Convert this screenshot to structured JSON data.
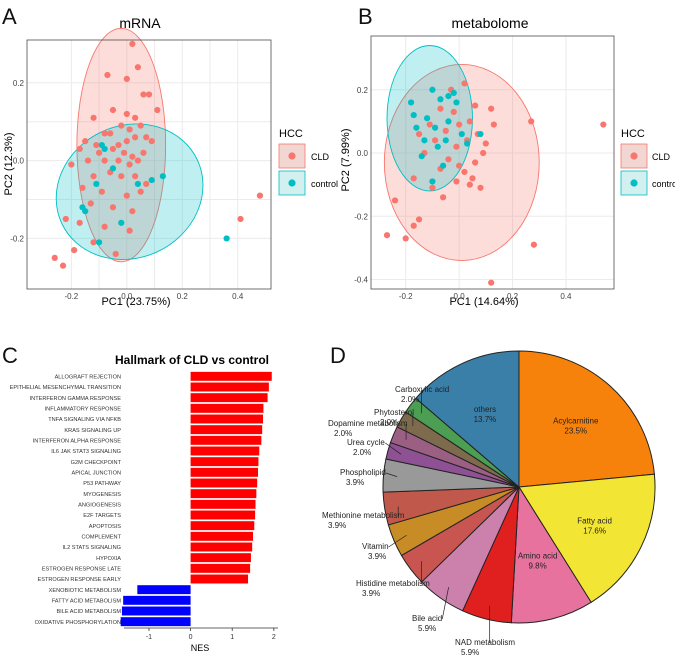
{
  "panel_labels": [
    "A",
    "B",
    "C",
    "D"
  ],
  "colors": {
    "cld": "#f8766d",
    "control": "#00bfc4",
    "grid": "#ebebeb",
    "panel_border": "#4d4d4d",
    "bar_up": "#ff0000",
    "bar_down": "#0000ff"
  },
  "chart_data": [
    {
      "id": "A",
      "type": "scatter",
      "title": "mRNA",
      "xlabel": "PC1 (23.75%)",
      "ylabel": "PC2 (12.3%)",
      "xlim": [
        -0.36,
        0.52
      ],
      "ylim": [
        -0.33,
        0.31
      ],
      "xticks": [
        -0.2,
        -0.1,
        0.0,
        0.1,
        0.2,
        0.3,
        0.4
      ],
      "xtick_labels": [
        "-0.2",
        "",
        "0.0",
        "",
        "0.2",
        "",
        "0.4"
      ],
      "yticks": [
        -0.2,
        -0.1,
        0.0,
        0.1,
        0.2
      ],
      "ytick_labels": [
        "-0.2",
        "",
        "0.0",
        "",
        "0.2"
      ],
      "legend": {
        "title": "HCC",
        "items": [
          "CLD",
          "control"
        ],
        "position": "right"
      },
      "ellipses": [
        {
          "group": "CLD",
          "center": [
            -0.02,
            0.04
          ],
          "semi_axes": [
            0.16,
            0.3
          ],
          "angle_deg": 0
        },
        {
          "group": "control",
          "center": [
            0.01,
            -0.08
          ],
          "semi_axes": [
            0.27,
            0.17
          ],
          "angle_deg": -25
        }
      ],
      "series": [
        {
          "name": "CLD",
          "color": "#f8766d",
          "points": [
            [
              0.02,
              0.3
            ],
            [
              0.04,
              0.24
            ],
            [
              -0.07,
              0.22
            ],
            [
              0.0,
              0.21
            ],
            [
              0.06,
              0.17
            ],
            [
              0.08,
              0.17
            ],
            [
              0.11,
              0.13
            ],
            [
              -0.05,
              0.13
            ],
            [
              0.0,
              0.12
            ],
            [
              0.03,
              0.11
            ],
            [
              -0.12,
              0.11
            ],
            [
              -0.08,
              0.07
            ],
            [
              -0.06,
              0.07
            ],
            [
              -0.02,
              0.09
            ],
            [
              0.01,
              0.08
            ],
            [
              0.05,
              0.09
            ],
            [
              0.07,
              0.06
            ],
            [
              -0.15,
              0.05
            ],
            [
              -0.11,
              0.04
            ],
            [
              -0.03,
              0.04
            ],
            [
              0.0,
              0.05
            ],
            [
              0.03,
              0.06
            ],
            [
              0.09,
              0.05
            ],
            [
              -0.17,
              0.03
            ],
            [
              -0.1,
              0.02
            ],
            [
              -0.05,
              0.03
            ],
            [
              -0.01,
              0.02
            ],
            [
              0.02,
              0.01
            ],
            [
              0.06,
              0.02
            ],
            [
              -0.2,
              -0.01
            ],
            [
              -0.14,
              0.0
            ],
            [
              -0.08,
              0.0
            ],
            [
              -0.03,
              0.0
            ],
            [
              0.01,
              -0.01
            ],
            [
              0.04,
              0.0
            ],
            [
              -0.12,
              -0.04
            ],
            [
              -0.06,
              -0.03
            ],
            [
              -0.02,
              -0.04
            ],
            [
              0.03,
              -0.04
            ],
            [
              0.07,
              -0.06
            ],
            [
              -0.16,
              -0.07
            ],
            [
              -0.09,
              -0.08
            ],
            [
              0.0,
              -0.09
            ],
            [
              0.05,
              -0.08
            ],
            [
              -0.13,
              -0.11
            ],
            [
              -0.05,
              -0.12
            ],
            [
              0.02,
              -0.13
            ],
            [
              -0.17,
              -0.16
            ],
            [
              -0.08,
              -0.17
            ],
            [
              0.01,
              -0.18
            ],
            [
              -0.22,
              -0.15
            ],
            [
              -0.19,
              -0.23
            ],
            [
              -0.26,
              -0.25
            ],
            [
              -0.23,
              -0.27
            ],
            [
              -0.12,
              -0.21
            ],
            [
              -0.04,
              -0.24
            ],
            [
              0.41,
              -0.15
            ],
            [
              0.48,
              -0.09
            ]
          ]
        },
        {
          "name": "control",
          "color": "#00bfc4",
          "points": [
            [
              -0.09,
              0.04
            ],
            [
              -0.08,
              0.03
            ],
            [
              0.13,
              -0.04
            ],
            [
              0.09,
              -0.05
            ],
            [
              0.04,
              -0.06
            ],
            [
              -0.11,
              -0.06
            ],
            [
              -0.16,
              -0.12
            ],
            [
              -0.15,
              -0.13
            ],
            [
              -0.1,
              -0.21
            ],
            [
              -0.02,
              -0.16
            ],
            [
              -0.05,
              -0.02
            ],
            [
              0.36,
              -0.2
            ]
          ]
        }
      ]
    },
    {
      "id": "B",
      "type": "scatter",
      "title": "metabolome",
      "xlabel": "PC1 (14.64%)",
      "ylabel": "PC2 (7.99%)",
      "xlim": [
        -0.33,
        0.58
      ],
      "ylim": [
        -0.43,
        0.37
      ],
      "xticks": [
        -0.2,
        0.0,
        0.2,
        0.4
      ],
      "xtick_labels": [
        "-0.2",
        "0.0",
        "0.2",
        "0.4"
      ],
      "yticks": [
        -0.4,
        -0.2,
        0.0,
        0.2
      ],
      "ytick_labels": [
        "-0.4",
        "-0.2",
        "0.0",
        "0.2"
      ],
      "legend": {
        "title": "HCC",
        "items": [
          "CLD",
          "control"
        ],
        "position": "right"
      },
      "ellipses": [
        {
          "group": "CLD",
          "center": [
            0.01,
            -0.03
          ],
          "semi_axes": [
            0.29,
            0.31
          ],
          "angle_deg": 0
        },
        {
          "group": "control",
          "center": [
            -0.11,
            0.11
          ],
          "semi_axes": [
            0.16,
            0.23
          ],
          "angle_deg": 0
        }
      ],
      "series": [
        {
          "name": "CLD",
          "color": "#f8766d",
          "points": [
            [
              0.54,
              0.09
            ],
            [
              0.27,
              0.1
            ],
            [
              0.28,
              -0.29
            ],
            [
              0.12,
              -0.41
            ],
            [
              0.04,
              -0.1
            ],
            [
              -0.27,
              -0.26
            ],
            [
              -0.24,
              -0.15
            ],
            [
              -0.2,
              -0.27
            ],
            [
              -0.17,
              -0.23
            ],
            [
              -0.15,
              -0.21
            ],
            [
              -0.1,
              -0.11
            ],
            [
              -0.06,
              -0.14
            ],
            [
              -0.01,
              -0.09
            ],
            [
              0.02,
              -0.06
            ],
            [
              0.06,
              -0.03
            ],
            [
              0.09,
              0.0
            ],
            [
              -0.07,
              -0.05
            ],
            [
              -0.04,
              -0.02
            ],
            [
              -0.01,
              0.02
            ],
            [
              0.03,
              0.04
            ],
            [
              0.07,
              0.06
            ],
            [
              -0.13,
              0.0
            ],
            [
              -0.09,
              0.04
            ],
            [
              -0.05,
              0.07
            ],
            [
              0.0,
              0.09
            ],
            [
              0.04,
              0.1
            ],
            [
              -0.15,
              0.06
            ],
            [
              -0.11,
              0.09
            ],
            [
              0.06,
              0.15
            ],
            [
              0.12,
              0.14
            ],
            [
              -0.03,
              0.2
            ],
            [
              0.02,
              0.22
            ],
            [
              -0.07,
              0.14
            ],
            [
              0.1,
              0.03
            ],
            [
              0.13,
              0.09
            ],
            [
              -0.17,
              -0.08
            ],
            [
              0.0,
              -0.04
            ],
            [
              0.05,
              -0.08
            ],
            [
              -0.02,
              0.13
            ],
            [
              0.08,
              -0.11
            ]
          ]
        },
        {
          "name": "control",
          "color": "#00bfc4",
          "points": [
            [
              -0.18,
              0.16
            ],
            [
              -0.17,
              0.12
            ],
            [
              -0.1,
              0.2
            ],
            [
              -0.07,
              0.17
            ],
            [
              -0.04,
              0.18
            ],
            [
              -0.01,
              0.16
            ],
            [
              -0.12,
              0.11
            ],
            [
              -0.09,
              0.08
            ],
            [
              -0.04,
              0.1
            ],
            [
              0.01,
              0.06
            ],
            [
              0.08,
              0.06
            ],
            [
              -0.13,
              0.04
            ],
            [
              -0.08,
              0.02
            ],
            [
              -0.05,
              0.04
            ],
            [
              0.03,
              0.03
            ],
            [
              -0.14,
              -0.01
            ],
            [
              -0.06,
              -0.04
            ],
            [
              -0.1,
              -0.09
            ],
            [
              -0.16,
              0.08
            ],
            [
              -0.02,
              0.19
            ]
          ]
        }
      ]
    },
    {
      "id": "C",
      "type": "bar",
      "orientation": "horizontal",
      "title": "Hallmark of CLD vs control",
      "xlabel": "NES",
      "xlim": [
        -1.6,
        2.1
      ],
      "xticks": [
        -1,
        0,
        1,
        2
      ],
      "xtick_labels": [
        "-1",
        "0",
        "1",
        "2"
      ],
      "categories": [
        "ALLOGRAFT REJECTION",
        "EPITHELIAL MESENCHYMAL TRANSITION",
        "INTERFERON GAMMA RESPONSE",
        "INFLAMMATORY RESPONSE",
        "TNFA SIGNALING VIA NFKB",
        "KRAS SIGNALING UP",
        "INTERFERON ALPHA RESPONSE",
        "IL6 JAK STAT3 SIGNALING",
        "G2M CHECKPOINT",
        "APICAL JUNCTION",
        "P53 PATHWAY",
        "MYOGENESIS",
        "ANGIOGENESIS",
        "E2F TARGETS",
        "APOPTOSIS",
        "COMPLEMENT",
        "IL2 STATS SIGNALING",
        "HYPOXIA",
        "ESTROGEN RESPONSE LATE",
        "ESTROGEN RESPONSE EARLY",
        "XENOBIOTIC METABOLISM",
        "FATTY ACID METABOLISM",
        "BILE ACID METABOLISM",
        "OXIDATIVE PHOSPHORYLATION"
      ],
      "values": [
        1.95,
        1.88,
        1.85,
        1.75,
        1.74,
        1.72,
        1.7,
        1.65,
        1.63,
        1.62,
        1.6,
        1.58,
        1.56,
        1.55,
        1.53,
        1.5,
        1.48,
        1.45,
        1.43,
        1.38,
        -1.28,
        -1.62,
        -1.65,
        -1.68
      ]
    },
    {
      "id": "D",
      "type": "pie",
      "slices": [
        {
          "label": "Acylcarnitine",
          "pct": "23.5%",
          "value": 23.5,
          "color": "#f7820b"
        },
        {
          "label": "Fatty acid",
          "pct": "17.6%",
          "value": 17.6,
          "color": "#f3e533"
        },
        {
          "label": "Amino acid",
          "pct": "9.8%",
          "value": 9.8,
          "color": "#e8729e"
        },
        {
          "label": "NAD metabolism",
          "pct": "5.9%",
          "value": 5.9,
          "color": "#e0201f"
        },
        {
          "label": "Bile acid",
          "pct": "5.9%",
          "value": 5.9,
          "color": "#cc80ac"
        },
        {
          "label": "Histidine metabolism",
          "pct": "3.9%",
          "value": 3.9,
          "color": "#c95550"
        },
        {
          "label": "Vitamin",
          "pct": "3.9%",
          "value": 3.9,
          "color": "#c78c26"
        },
        {
          "label": "Methionine metabolism",
          "pct": "3.9%",
          "value": 3.9,
          "color": "#c0584b"
        },
        {
          "label": "Phospholipid",
          "pct": "3.9%",
          "value": 3.9,
          "color": "#999999"
        },
        {
          "label": "Urea cycle",
          "pct": "2.0%",
          "value": 2.0,
          "color": "#8d5194"
        },
        {
          "label": "Dopamine metabolism",
          "pct": "2.0%",
          "value": 2.0,
          "color": "#9b5f83"
        },
        {
          "label": "Phytosterol",
          "pct": "2.0%",
          "value": 2.0,
          "color": "#7e6b4d"
        },
        {
          "label": "Carboxylic acid",
          "pct": "2.0%",
          "value": 2.0,
          "color": "#4b9e52"
        },
        {
          "label": "others",
          "pct": "13.7%",
          "value": 13.7,
          "color": "#3a7fa8"
        }
      ]
    }
  ]
}
